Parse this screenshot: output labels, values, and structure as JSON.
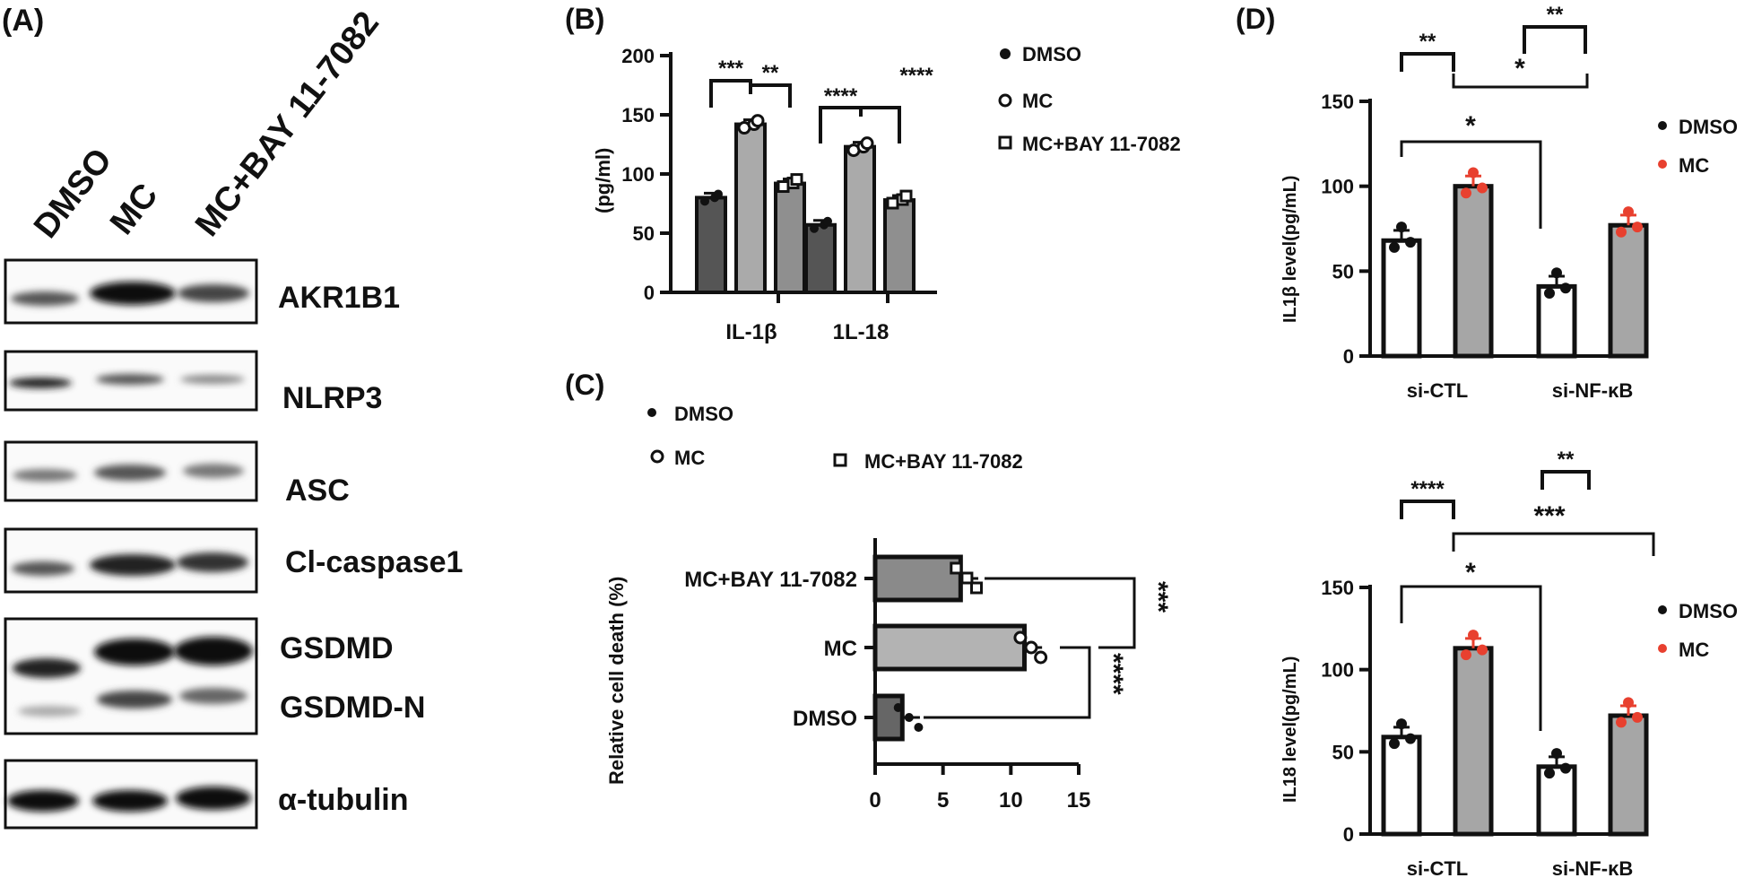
{
  "panel_a": {
    "label": "(A)",
    "lanes": [
      "DMSO",
      "MC",
      "MC+BAY 11-7082"
    ],
    "blots": [
      "AKR1B1",
      "NLRP3",
      "ASC",
      "Cl-caspase1",
      "GSDMD",
      "GSDMD-N",
      "α-tubulin"
    ]
  },
  "chart_data": [
    {
      "panel": "B",
      "label": "(B)",
      "type": "bar",
      "title": "",
      "xlabel": "",
      "ylabel": "(pg/ml)",
      "ylim": [
        0,
        200
      ],
      "yticks": [
        "0",
        "50",
        "100",
        "150",
        "200"
      ],
      "categories": [
        "IL-1β",
        "1L-18"
      ],
      "series": [
        {
          "name": "DMSO",
          "marker": "●",
          "color": "#555555",
          "values": [
            80,
            57
          ]
        },
        {
          "name": "MC",
          "marker": "○",
          "color": "#aaaaaa",
          "values": [
            142,
            123
          ]
        },
        {
          "name": "MC+BAY 11-7082",
          "marker": "□",
          "color": "#8f8f8f",
          "values": [
            92,
            78
          ]
        }
      ],
      "significance": [
        "***",
        "**",
        "****",
        "****"
      ]
    },
    {
      "panel": "C",
      "label": "(C)",
      "type": "bar",
      "orientation": "horizontal",
      "xlabel": "",
      "ylabel": "Relative cell death (%)",
      "xlim": [
        0,
        15
      ],
      "xticks": [
        "0",
        "5",
        "10",
        "15"
      ],
      "categories": [
        "MC+BAY 11-7082",
        "MC",
        "DMSO"
      ],
      "values": [
        6.3,
        11.0,
        2.0
      ],
      "colors": [
        "#8a8a8a",
        "#b3b3b3",
        "#666666"
      ],
      "legend": [
        {
          "name": "DMSO",
          "marker": "●"
        },
        {
          "name": "MC",
          "marker": "○"
        },
        {
          "name": "MC+BAY 11-7082",
          "marker": "□"
        }
      ],
      "significance": [
        "***",
        "****"
      ]
    },
    {
      "panel": "D",
      "label": "(D)",
      "type": "bar",
      "ylabel": "IL1β level(pg/mL)",
      "ylim": [
        0,
        150
      ],
      "yticks": [
        "0",
        "50",
        "100",
        "150"
      ],
      "categories": [
        "si-CTL",
        "si-NF-κB"
      ],
      "series": [
        {
          "name": "DMSO",
          "marker": "●",
          "color": "#ffffff",
          "dot_color": "#111111",
          "values": [
            68,
            41
          ]
        },
        {
          "name": "MC",
          "marker": "●",
          "color": "#a6a6a6",
          "dot_color": "#e8402f",
          "values": [
            100,
            77
          ]
        }
      ],
      "significance": [
        "**",
        "**",
        "*",
        "*"
      ]
    },
    {
      "panel": "D2",
      "type": "bar",
      "ylabel": "IL18 level(pg/mL)",
      "ylim": [
        0,
        150
      ],
      "yticks": [
        "0",
        "50",
        "100",
        "150"
      ],
      "categories": [
        "si-CTL",
        "si-NF-κB"
      ],
      "series": [
        {
          "name": "DMSO",
          "marker": "●",
          "color": "#ffffff",
          "dot_color": "#111111",
          "values": [
            59,
            41
          ]
        },
        {
          "name": "MC",
          "marker": "●",
          "color": "#a6a6a6",
          "dot_color": "#e8402f",
          "values": [
            113,
            72
          ]
        }
      ],
      "significance": [
        "****",
        "**",
        "***",
        "*"
      ]
    }
  ]
}
